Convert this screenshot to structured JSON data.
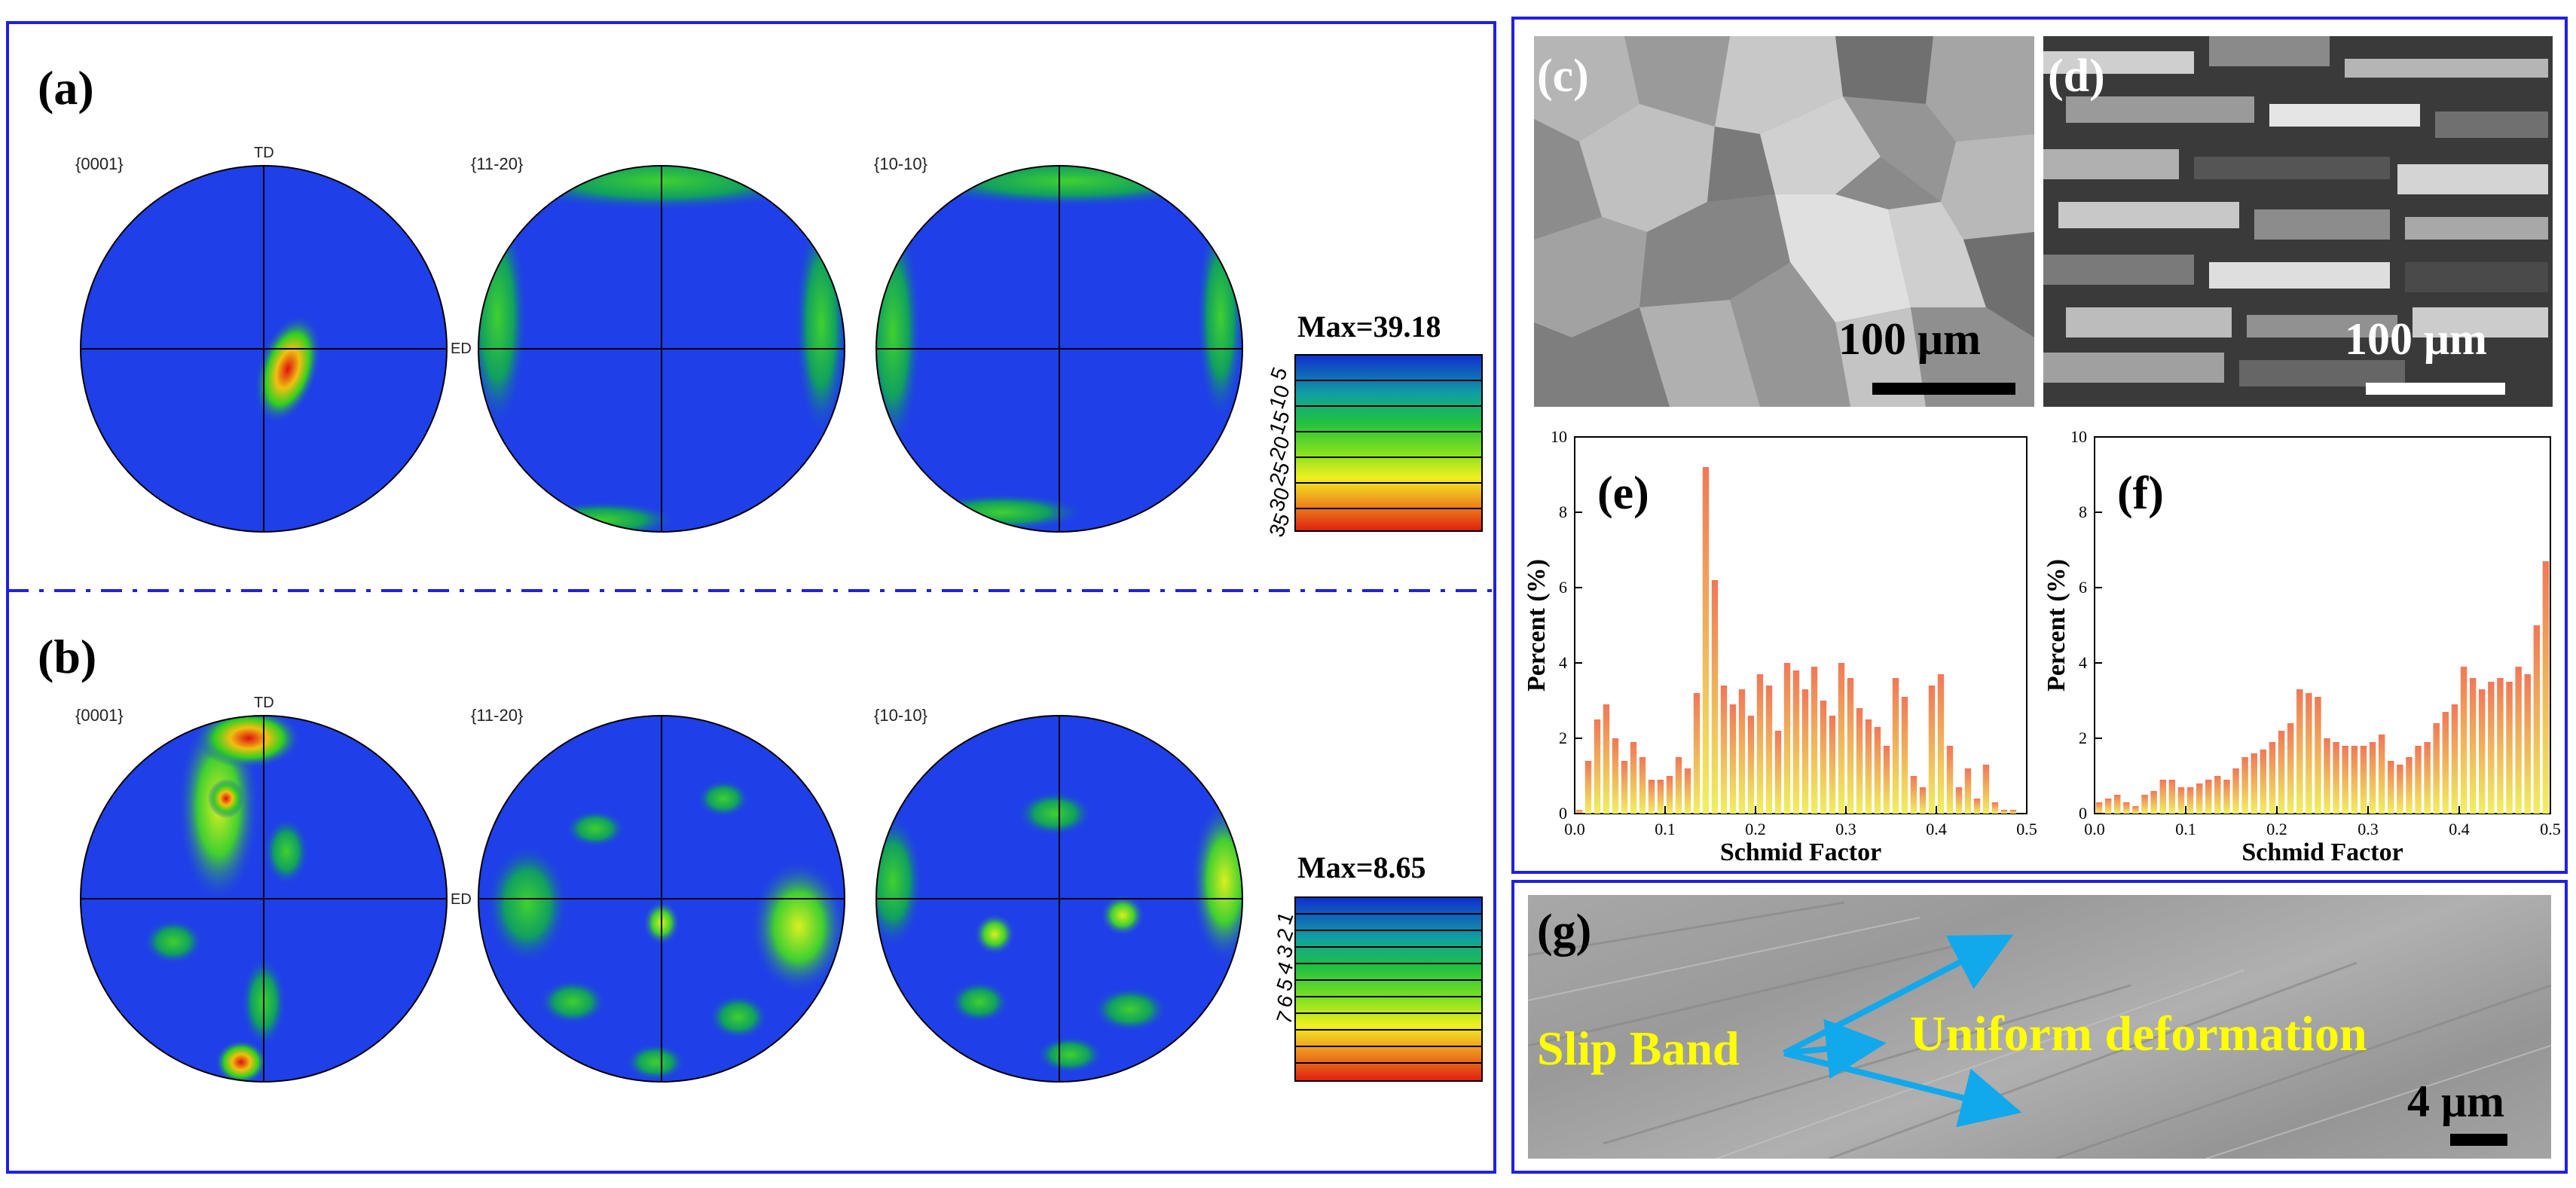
{
  "figure": {
    "panels": {
      "a": "(a)",
      "b": "(b)",
      "c": "(c)",
      "d": "(d)",
      "e": "(e)",
      "f": "(f)",
      "g": "(g)"
    },
    "pole_figures": {
      "planes": [
        "{0001}",
        "{11-20}",
        "{10-10}"
      ],
      "axis_td": "TD",
      "axis_ed": "ED",
      "row_a": {
        "max_label": "Max=39.18",
        "ticks": [
          "5",
          "10",
          "15",
          "20",
          "25",
          "30",
          "35"
        ]
      },
      "row_b": {
        "max_label": "Max=8.65",
        "ticks": [
          "1",
          "2",
          "3",
          "4",
          "5",
          "6",
          "7"
        ]
      }
    },
    "ebsd": {
      "c_scale": "100 μm",
      "d_scale": "100 μm"
    },
    "sem": {
      "slip_band": "Slip Band",
      "uniform": "Uniform deformation",
      "scale": "4 μm"
    },
    "colors": {
      "frame": "#2020e0",
      "pf_background": "#1f3fe8",
      "hot": "#e01010",
      "bar_top": "#f07858",
      "bar_bottom": "#f0f060"
    }
  },
  "chart_data": [
    {
      "id": "e",
      "type": "bar",
      "title": "(e)",
      "xlabel": "Schmid Factor",
      "ylabel": "Percent (%)",
      "xlim": [
        0.0,
        0.5
      ],
      "ylim": [
        0,
        10
      ],
      "xticks": [
        "0.0",
        "0.1",
        "0.2",
        "0.3",
        "0.4",
        "0.5"
      ],
      "yticks": [
        "0",
        "2",
        "4",
        "6",
        "8",
        "10"
      ],
      "bin_width": 0.01,
      "x": [
        0.005,
        0.015,
        0.025,
        0.035,
        0.045,
        0.055,
        0.065,
        0.075,
        0.085,
        0.095,
        0.105,
        0.115,
        0.125,
        0.135,
        0.145,
        0.155,
        0.165,
        0.175,
        0.185,
        0.195,
        0.205,
        0.215,
        0.225,
        0.235,
        0.245,
        0.255,
        0.265,
        0.275,
        0.285,
        0.295,
        0.305,
        0.315,
        0.325,
        0.335,
        0.345,
        0.355,
        0.365,
        0.375,
        0.385,
        0.395,
        0.405,
        0.415,
        0.425,
        0.435,
        0.445,
        0.455,
        0.465,
        0.475,
        0.485,
        0.495
      ],
      "values": [
        0.1,
        1.4,
        2.5,
        2.9,
        2.0,
        1.4,
        1.9,
        1.5,
        0.9,
        0.9,
        1.0,
        1.5,
        1.2,
        3.2,
        9.2,
        6.2,
        3.4,
        2.9,
        3.3,
        2.6,
        3.7,
        3.4,
        2.2,
        4.0,
        3.8,
        3.3,
        3.9,
        3.0,
        2.6,
        4.0,
        3.6,
        2.8,
        2.5,
        2.3,
        1.8,
        3.6,
        3.1,
        1.0,
        0.7,
        3.4,
        3.7,
        1.8,
        0.7,
        1.2,
        0.4,
        1.3,
        0.3,
        0.1,
        0.1,
        0.0
      ]
    },
    {
      "id": "f",
      "type": "bar",
      "title": "(f)",
      "xlabel": "Schmid Factor",
      "ylabel": "Percent (%)",
      "xlim": [
        0.0,
        0.5
      ],
      "ylim": [
        0,
        10
      ],
      "xticks": [
        "0.0",
        "0.1",
        "0.2",
        "0.3",
        "0.4",
        "0.5"
      ],
      "yticks": [
        "0",
        "2",
        "4",
        "6",
        "8",
        "10"
      ],
      "bin_width": 0.01,
      "x": [
        0.005,
        0.015,
        0.025,
        0.035,
        0.045,
        0.055,
        0.065,
        0.075,
        0.085,
        0.095,
        0.105,
        0.115,
        0.125,
        0.135,
        0.145,
        0.155,
        0.165,
        0.175,
        0.185,
        0.195,
        0.205,
        0.215,
        0.225,
        0.235,
        0.245,
        0.255,
        0.265,
        0.275,
        0.285,
        0.295,
        0.305,
        0.315,
        0.325,
        0.335,
        0.345,
        0.355,
        0.365,
        0.375,
        0.385,
        0.395,
        0.405,
        0.415,
        0.425,
        0.435,
        0.445,
        0.455,
        0.465,
        0.475,
        0.485,
        0.495
      ],
      "values": [
        0.3,
        0.4,
        0.5,
        0.3,
        0.2,
        0.5,
        0.6,
        0.9,
        0.9,
        0.7,
        0.7,
        0.8,
        0.9,
        1.0,
        0.9,
        1.2,
        1.5,
        1.6,
        1.7,
        1.9,
        2.2,
        2.4,
        3.3,
        3.2,
        3.1,
        2.0,
        1.9,
        1.8,
        1.8,
        1.8,
        1.9,
        2.1,
        1.4,
        1.3,
        1.5,
        1.8,
        1.9,
        2.4,
        2.7,
        2.9,
        3.9,
        3.6,
        3.3,
        3.5,
        3.6,
        3.5,
        3.9,
        3.7,
        5.0,
        6.7
      ]
    }
  ]
}
